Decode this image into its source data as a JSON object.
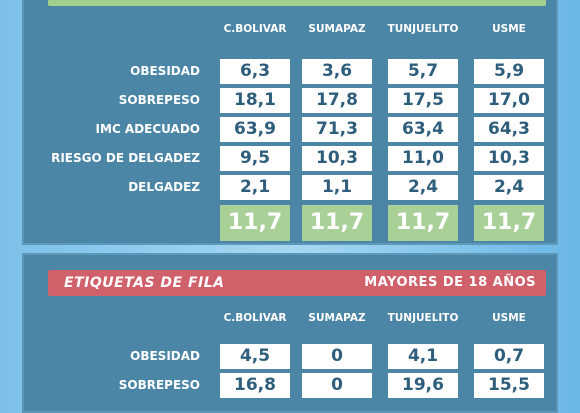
{
  "panels": [
    {
      "columns": [
        "C.BOLIVAR",
        "SUMAPAZ",
        "TUNJUELITO",
        "USME"
      ],
      "rows": [
        {
          "label": "OBESIDAD",
          "values": [
            "6,3",
            "3,6",
            "5,7",
            "5,9"
          ]
        },
        {
          "label": "SOBREPESO",
          "values": [
            "18,1",
            "17,8",
            "17,5",
            "17,0"
          ]
        },
        {
          "label": "IMC ADECUADO",
          "values": [
            "63,9",
            "71,3",
            "63,4",
            "64,3"
          ]
        },
        {
          "label": "RIESGO DE DELGADEZ",
          "values": [
            "9,5",
            "10,3",
            "11,0",
            "10,3"
          ]
        },
        {
          "label": "DELGADEZ",
          "values": [
            "2,1",
            "1,1",
            "2,4",
            "2,4"
          ]
        }
      ],
      "total": [
        "11,7",
        "11,7",
        "11,7",
        "11,7"
      ]
    },
    {
      "header": {
        "title": "ETIQUETAS DE FILA",
        "subtitle": "MAYORES DE 18 AÑOS"
      },
      "columns": [
        "C.BOLIVAR",
        "SUMAPAZ",
        "TUNJUELITO",
        "USME"
      ],
      "rows": [
        {
          "label": "OBESIDAD",
          "values": [
            "4,5",
            "0",
            "4,1",
            "0,7"
          ]
        },
        {
          "label": "SOBREPESO",
          "values": [
            "16,8",
            "0",
            "19,6",
            "15,5"
          ]
        }
      ]
    }
  ]
}
